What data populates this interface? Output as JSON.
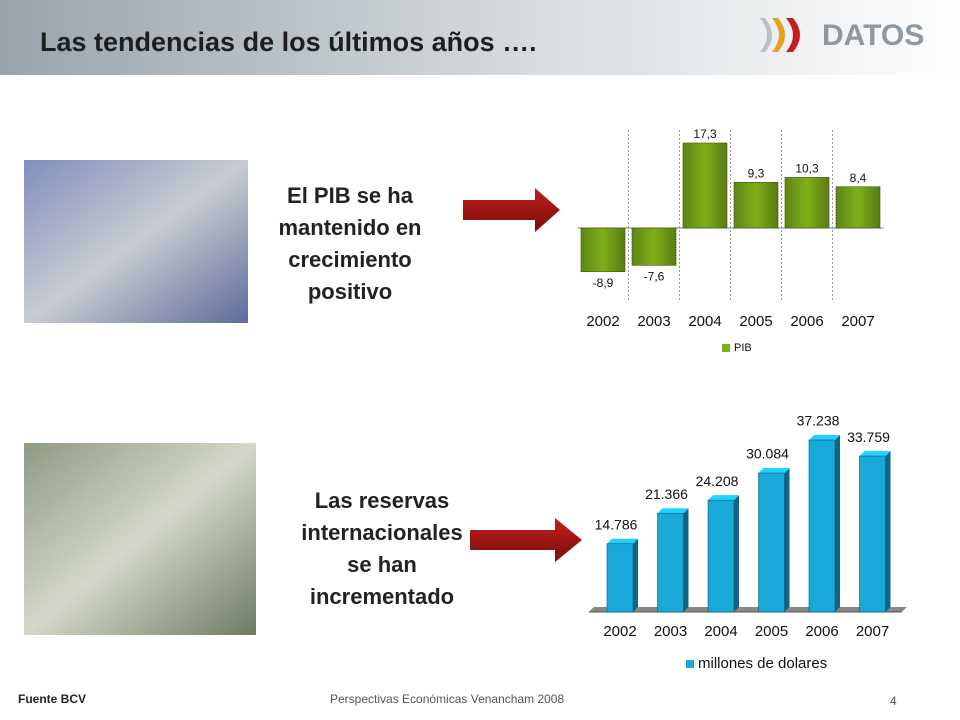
{
  "slide": {
    "title": "Las tendencias de los últimos años ….",
    "logo": "DATOS",
    "text_top": [
      "El PIB se ha",
      "mantenido en",
      "crecimiento",
      "positivo"
    ],
    "text_bottom": [
      "Las reservas",
      "internacionales",
      "se han",
      "incrementado"
    ],
    "footer_source": "Fuente BCV",
    "footer_center": "Perspectivas Económicas Venancham 2008",
    "page_number": "4"
  },
  "chart_data": [
    {
      "type": "bar",
      "categories": [
        "2002",
        "2003",
        "2004",
        "2005",
        "2006",
        "2007"
      ],
      "series": [
        {
          "name": "PIB",
          "color": "#7fb01a",
          "values": [
            -8.9,
            -7.6,
            17.3,
            9.3,
            10.3,
            8.4
          ],
          "value_labels": [
            "-8,9",
            "-7,6",
            "17,3",
            "9,3",
            "10,3",
            "8,4"
          ]
        }
      ]
    },
    {
      "type": "bar3d",
      "categories": [
        "2002",
        "2003",
        "2004",
        "2005",
        "2006",
        "2007"
      ],
      "series": [
        {
          "name": "millones de dolares",
          "color": "#19a9d8",
          "values": [
            14786,
            21366,
            24208,
            30084,
            37238,
            33759
          ],
          "value_labels": [
            "14.786",
            "21.366",
            "24.208",
            "30.084",
            "37.238",
            "33.759"
          ]
        }
      ]
    }
  ]
}
